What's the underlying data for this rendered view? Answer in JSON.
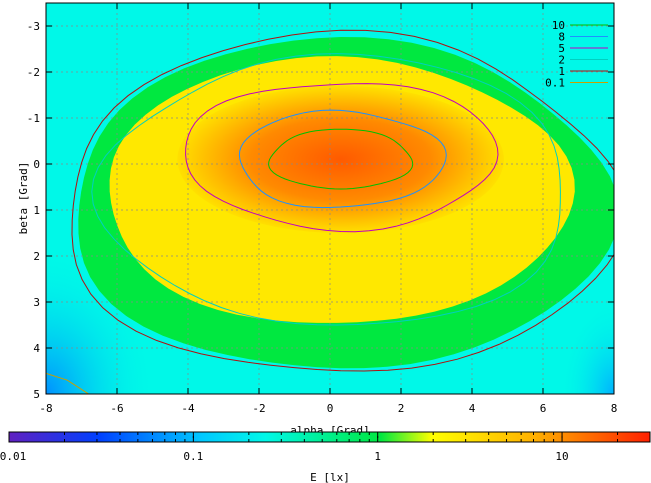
{
  "chart_data": {
    "type": "heatmap",
    "title": "",
    "xlabel": "alpha [Grad]",
    "ylabel": "beta [Grad]",
    "xlim": [
      -8,
      8
    ],
    "ylim": [
      -3.5,
      5
    ],
    "y_inverted": true,
    "x_ticks": [
      "-8",
      "-6",
      "-4",
      "-2",
      "0",
      "2",
      "4",
      "6",
      "8"
    ],
    "y_ticks": [
      "-3",
      "-2",
      "-1",
      "0",
      "1",
      "2",
      "3",
      "4",
      "5"
    ],
    "grid": true,
    "legend_placement": "top-right",
    "contours": [
      {
        "level": "10",
        "color": "#00c000",
        "center": [
          0.3,
          -0.1
        ],
        "rx": 2.0,
        "ry": 0.65
      },
      {
        "level": "8",
        "color": "#1e90ff",
        "center": [
          0.3,
          -0.1
        ],
        "rx": 2.9,
        "ry": 1.05
      },
      {
        "level": "5",
        "color": "#c000c0",
        "center": [
          0.3,
          -0.2
        ],
        "rx": 4.4,
        "ry": 1.6
      },
      {
        "level": "2",
        "color": "#00d0c0",
        "center": [
          0.2,
          0.6
        ],
        "rx": 6.6,
        "ry": 2.95
      },
      {
        "level": "1",
        "color": "#b01010",
        "center": [
          0.3,
          0.9
        ],
        "rx": 7.8,
        "ry": 3.7
      },
      {
        "level": "0.1",
        "color": "#c8a000",
        "center": [
          -8,
          5
        ],
        "rx": 1.6,
        "ry": 0.9
      }
    ],
    "colorbar": {
      "label": "E [lx]",
      "scale": "log",
      "range": [
        0.01,
        30
      ],
      "ticks": [
        "0.01",
        "0.1",
        "1",
        "10"
      ],
      "tick_values": [
        0.01,
        0.1,
        1,
        10
      ]
    },
    "bands": [
      {
        "level": 2,
        "color": "#ffff00"
      },
      {
        "level": 0.9,
        "color": "#00e840"
      },
      {
        "level": 0.3,
        "color": "#00f0c8"
      }
    ],
    "colors": {
      "background": "#00f8e8",
      "peak": "#ff5a00",
      "yellow": "#ffe800",
      "green": "#00e840",
      "cyan": "#00f8e8",
      "blue": "#0090ff",
      "deep_blue": "#6020c0",
      "red": "#ff2000"
    }
  }
}
